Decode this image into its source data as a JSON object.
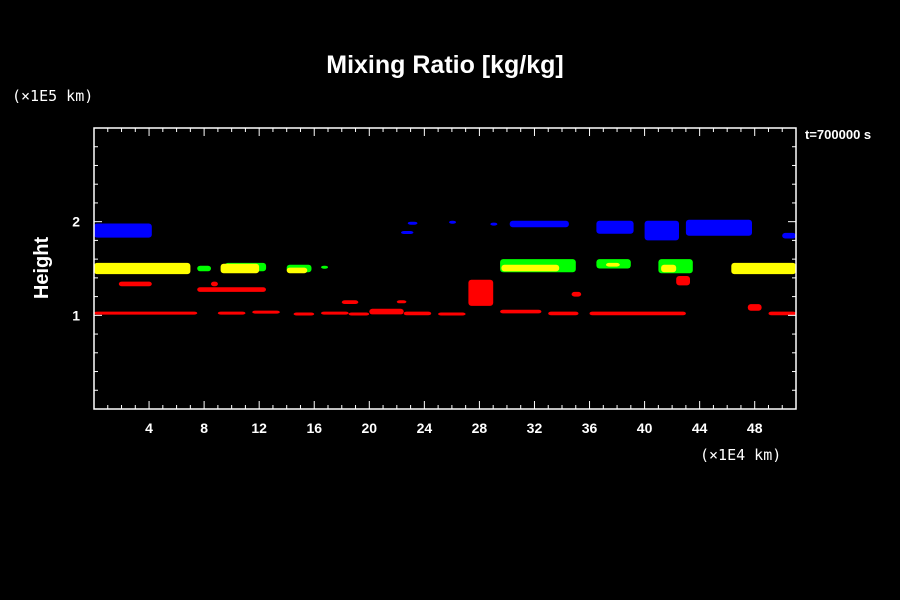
{
  "chart_data": {
    "type": "contour",
    "title": "Mixing Ratio [kg/kg]",
    "ylabel": "Height",
    "xlabel": "",
    "x_unit": "(×1E4 km)",
    "y_unit": "(×1E5 km)",
    "time_label": "t=700000 s",
    "xlim": [
      0,
      51
    ],
    "ylim": [
      0,
      3
    ],
    "x_ticks": [
      4,
      8,
      12,
      16,
      20,
      24,
      28,
      32,
      36,
      40,
      44,
      48
    ],
    "y_ticks": [
      1,
      2
    ],
    "colors": {
      "background": "#000000",
      "axes": "#ffffff",
      "blue": "#0000ff",
      "green": "#00ff00",
      "yellow": "#ffff00",
      "red": "#ff0000"
    },
    "series": [
      {
        "color": "blue",
        "segments": [
          [
            0,
            1.83,
            4.2,
            1.98
          ],
          [
            22.3,
            1.87,
            23.2,
            1.9
          ],
          [
            22.8,
            1.97,
            23.5,
            2.0
          ],
          [
            25.8,
            1.98,
            26.3,
            2.01
          ],
          [
            28.8,
            1.97,
            29.3,
            1.99
          ],
          [
            30.2,
            1.94,
            34.5,
            2.01
          ],
          [
            36.5,
            1.87,
            39.2,
            2.01
          ],
          [
            40.0,
            1.8,
            42.5,
            2.01
          ],
          [
            43.0,
            1.85,
            47.8,
            2.02
          ],
          [
            50.0,
            1.82,
            51.0,
            1.88
          ]
        ]
      },
      {
        "color": "green",
        "segments": [
          [
            4.5,
            1.5,
            6.5,
            1.55
          ],
          [
            7.5,
            1.47,
            8.5,
            1.53
          ],
          [
            9.5,
            1.47,
            12.5,
            1.56
          ],
          [
            14.0,
            1.46,
            15.8,
            1.54
          ],
          [
            16.5,
            1.5,
            17.0,
            1.53
          ],
          [
            29.5,
            1.46,
            35.0,
            1.6
          ],
          [
            36.5,
            1.5,
            39.0,
            1.6
          ],
          [
            41.0,
            1.45,
            43.5,
            1.6
          ]
        ]
      },
      {
        "color": "yellow",
        "segments": [
          [
            0,
            1.44,
            7.0,
            1.56
          ],
          [
            9.2,
            1.45,
            12.0,
            1.55
          ],
          [
            14.0,
            1.45,
            15.5,
            1.51
          ],
          [
            29.6,
            1.47,
            33.8,
            1.54
          ],
          [
            37.2,
            1.52,
            38.2,
            1.56
          ],
          [
            41.2,
            1.46,
            42.3,
            1.54
          ],
          [
            46.3,
            1.44,
            51.0,
            1.56
          ]
        ]
      },
      {
        "color": "red",
        "segments": [
          [
            0,
            1.01,
            7.5,
            1.04
          ],
          [
            9.0,
            1.01,
            11.0,
            1.04
          ],
          [
            11.5,
            1.02,
            13.5,
            1.05
          ],
          [
            14.5,
            1.01,
            16.0,
            1.03
          ],
          [
            16.5,
            1.01,
            18.5,
            1.04
          ],
          [
            18.5,
            1.0,
            20.0,
            1.03
          ],
          [
            20.0,
            1.01,
            22.5,
            1.07
          ],
          [
            22.5,
            1.0,
            24.5,
            1.04
          ],
          [
            25.0,
            1.0,
            27.0,
            1.03
          ],
          [
            1.8,
            1.31,
            4.2,
            1.36
          ],
          [
            7.5,
            1.25,
            12.5,
            1.3
          ],
          [
            8.5,
            1.31,
            9.0,
            1.36
          ],
          [
            18.0,
            1.12,
            19.2,
            1.16
          ],
          [
            22.0,
            1.13,
            22.7,
            1.16
          ],
          [
            27.2,
            1.1,
            29.0,
            1.38
          ],
          [
            29.5,
            1.02,
            32.5,
            1.06
          ],
          [
            33.0,
            1.0,
            35.2,
            1.04
          ],
          [
            34.7,
            1.2,
            35.4,
            1.25
          ],
          [
            36.0,
            1.0,
            43.0,
            1.04
          ],
          [
            42.3,
            1.32,
            43.3,
            1.42
          ],
          [
            47.5,
            1.05,
            48.5,
            1.12
          ],
          [
            49.0,
            1.0,
            51.0,
            1.04
          ]
        ]
      }
    ]
  }
}
